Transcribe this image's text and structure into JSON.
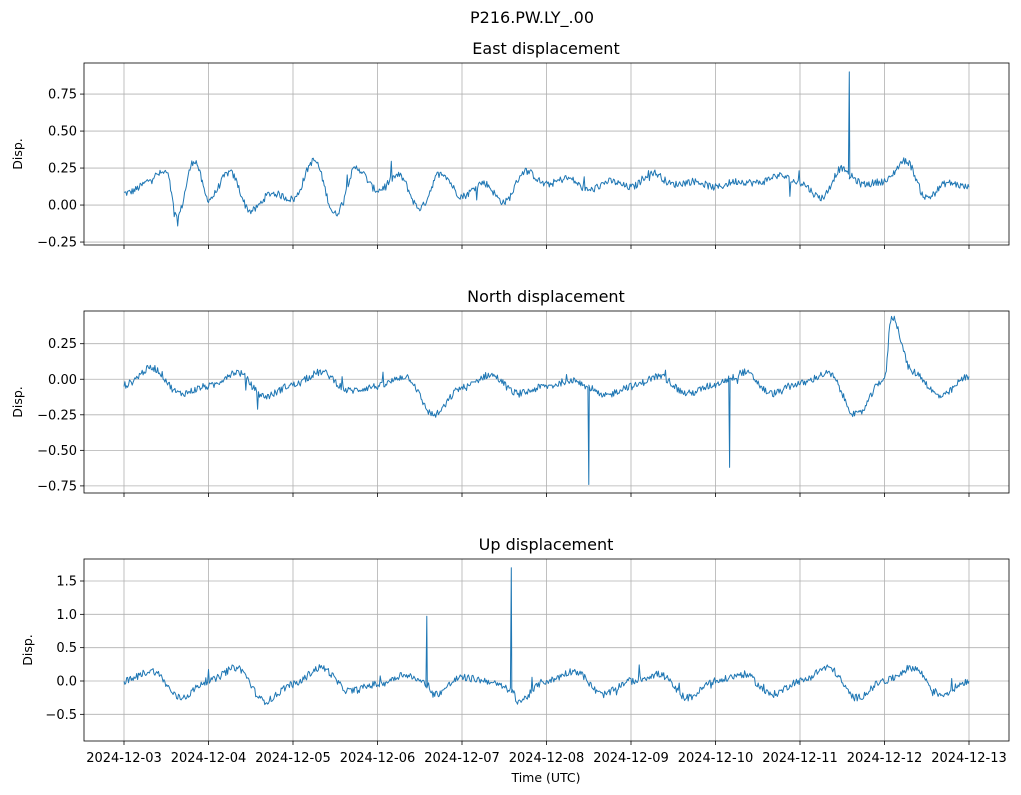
{
  "figure": {
    "suptitle": "P216.PW.LY_.00",
    "xlabel": "Time (UTC)",
    "line_color": "#1f77b4"
  },
  "chart_data": [
    {
      "type": "line",
      "title": "East displacement",
      "ylabel": "Disp.",
      "x_range": [
        "2024-12-03",
        "2024-12-13"
      ],
      "ylim": [
        -0.27,
        0.96
      ],
      "yticks": [
        -0.25,
        0.0,
        0.25,
        0.5,
        0.75
      ],
      "ytick_labels": [
        "−0.25",
        "0.00",
        "0.25",
        "0.50",
        "0.75"
      ],
      "grid": true,
      "series": [
        {
          "x": [
            "2024-12-03",
            "2024-12-03T12:00",
            "2024-12-03T15:00",
            "2024-12-03T20:00",
            "2024-12-04",
            "2024-12-04T06:00",
            "2024-12-04T12:00",
            "2024-12-04T18:00",
            "2024-12-05",
            "2024-12-05T06:00",
            "2024-12-05T12:00",
            "2024-12-05T18:00",
            "2024-12-06",
            "2024-12-06T06:00",
            "2024-12-06T12:00",
            "2024-12-06T18:00",
            "2024-12-07",
            "2024-12-07T06:00",
            "2024-12-07T12:00",
            "2024-12-07T18:00",
            "2024-12-08",
            "2024-12-08T06:00",
            "2024-12-08T12:00",
            "2024-12-08T18:00",
            "2024-12-09",
            "2024-12-09T06:00",
            "2024-12-09T12:00",
            "2024-12-09T18:00",
            "2024-12-10",
            "2024-12-10T06:00",
            "2024-12-10T12:00",
            "2024-12-10T18:00",
            "2024-12-11",
            "2024-12-11T06:00",
            "2024-12-11T12:00",
            "2024-12-11T14:00",
            "2024-12-11T18:00",
            "2024-12-12",
            "2024-12-12T06:00",
            "2024-12-12T12:00",
            "2024-12-12T18:00",
            "2024-12-13"
          ],
          "y": [
            0.08,
            0.22,
            -0.08,
            0.3,
            0.04,
            0.22,
            -0.04,
            0.08,
            0.04,
            0.3,
            -0.06,
            0.25,
            0.1,
            0.2,
            -0.02,
            0.22,
            0.06,
            0.15,
            0.02,
            0.23,
            0.14,
            0.18,
            0.1,
            0.16,
            0.12,
            0.22,
            0.14,
            0.16,
            0.12,
            0.16,
            0.15,
            0.2,
            0.15,
            0.05,
            0.25,
            0.9,
            0.14,
            0.16,
            0.3,
            0.05,
            0.15,
            0.12
          ]
        }
      ]
    },
    {
      "type": "line",
      "title": "North displacement",
      "ylabel": "Disp.",
      "x_range": [
        "2024-12-03",
        "2024-12-13"
      ],
      "ylim": [
        -0.8,
        0.48
      ],
      "yticks": [
        -0.75,
        -0.5,
        -0.25,
        0.0,
        0.25
      ],
      "ytick_labels": [
        "−0.75",
        "−0.50",
        "−0.25",
        "0.00",
        "0.25"
      ],
      "grid": true,
      "series": [
        {
          "x": [
            "2024-12-03",
            "2024-12-03T08:00",
            "2024-12-03T16:00",
            "2024-12-04",
            "2024-12-04T08:00",
            "2024-12-04T16:00",
            "2024-12-05",
            "2024-12-05T08:00",
            "2024-12-05T16:00",
            "2024-12-06",
            "2024-12-06T08:00",
            "2024-12-06T16:00",
            "2024-12-07",
            "2024-12-07T08:00",
            "2024-12-07T16:00",
            "2024-12-08",
            "2024-12-08T08:00",
            "2024-12-08T12:00",
            "2024-12-08T16:00",
            "2024-12-09",
            "2024-12-09T08:00",
            "2024-12-09T16:00",
            "2024-12-10",
            "2024-12-10T04:00",
            "2024-12-10T08:00",
            "2024-12-10T16:00",
            "2024-12-11",
            "2024-12-11T08:00",
            "2024-12-11T16:00",
            "2024-12-12",
            "2024-12-12T02:00",
            "2024-12-12T08:00",
            "2024-12-12T16:00",
            "2024-12-13"
          ],
          "y": [
            -0.04,
            0.08,
            -0.1,
            -0.05,
            0.05,
            -0.12,
            -0.04,
            0.05,
            -0.08,
            -0.05,
            0.02,
            -0.25,
            -0.06,
            0.03,
            -0.1,
            -0.05,
            0.0,
            -0.74,
            -0.12,
            -0.05,
            0.02,
            -0.1,
            -0.04,
            -0.62,
            0.05,
            -0.1,
            -0.03,
            0.04,
            -0.25,
            0.0,
            0.44,
            0.05,
            -0.12,
            0.02
          ]
        }
      ]
    },
    {
      "type": "line",
      "title": "Up displacement",
      "ylabel": "Disp.",
      "x_range": [
        "2024-12-03",
        "2024-12-13"
      ],
      "ylim": [
        -0.9,
        1.83
      ],
      "yticks": [
        -0.5,
        0.0,
        0.5,
        1.0,
        1.5
      ],
      "ytick_labels": [
        "−0.5",
        "0.0",
        "0.5",
        "1.0",
        "1.5"
      ],
      "grid": true,
      "series": [
        {
          "x": [
            "2024-12-03",
            "2024-12-03T08:00",
            "2024-12-03T16:00",
            "2024-12-04",
            "2024-12-04T08:00",
            "2024-12-04T16:00",
            "2024-12-05",
            "2024-12-05T08:00",
            "2024-12-05T16:00",
            "2024-12-06",
            "2024-12-06T08:00",
            "2024-12-06T14:00",
            "2024-12-06T16:00",
            "2024-12-07",
            "2024-12-07T08:00",
            "2024-12-07T14:00",
            "2024-12-07T16:00",
            "2024-12-08",
            "2024-12-08T08:00",
            "2024-12-08T16:00",
            "2024-12-09",
            "2024-12-09T08:00",
            "2024-12-09T16:00",
            "2024-12-10",
            "2024-12-10T08:00",
            "2024-12-10T16:00",
            "2024-12-11",
            "2024-12-11T08:00",
            "2024-12-11T16:00",
            "2024-12-12",
            "2024-12-12T08:00",
            "2024-12-12T16:00",
            "2024-12-13"
          ],
          "y": [
            0.0,
            0.15,
            -0.25,
            0.0,
            0.2,
            -0.3,
            -0.05,
            0.2,
            -0.15,
            -0.05,
            0.1,
            0.97,
            -0.2,
            0.05,
            0.0,
            1.7,
            -0.3,
            0.0,
            0.15,
            -0.2,
            0.0,
            0.1,
            -0.25,
            0.0,
            0.1,
            -0.2,
            0.0,
            0.2,
            -0.25,
            0.0,
            0.2,
            -0.2,
            0.0
          ]
        }
      ]
    }
  ],
  "xaxis": {
    "ticks": [
      "2024-12-03",
      "2024-12-04",
      "2024-12-05",
      "2024-12-06",
      "2024-12-07",
      "2024-12-08",
      "2024-12-09",
      "2024-12-10",
      "2024-12-11",
      "2024-12-12",
      "2024-12-13"
    ]
  }
}
